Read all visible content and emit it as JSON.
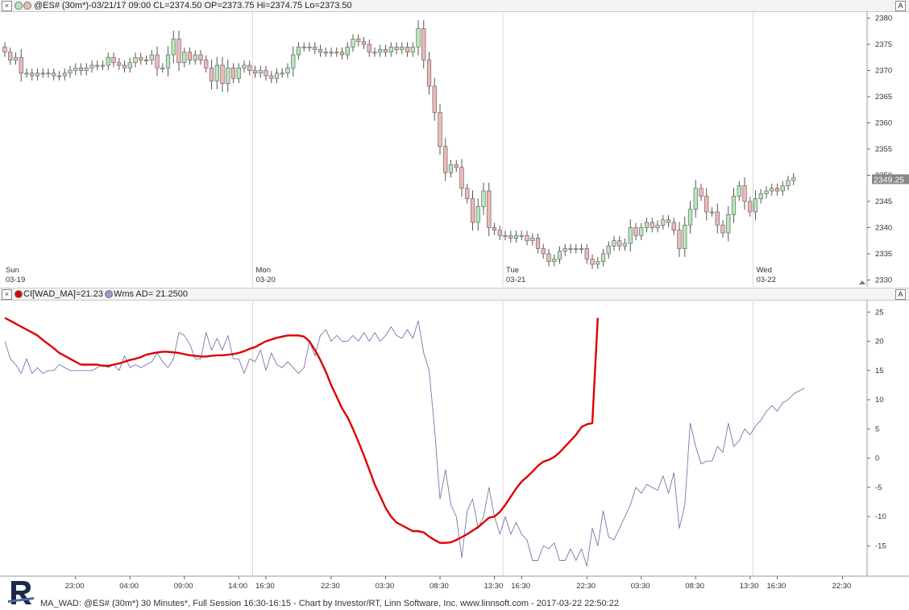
{
  "top_header": {
    "close": "×",
    "text": "@ES# (30m*)-03/21/17 09:00 CL=2374.50 OP=2373.75 Hi=2374.75 Lo=2373.50",
    "autoscale": "A"
  },
  "bottom_header": {
    "close": "×",
    "text1": "CI[WAD_MA]=21.23",
    "text2": "Wms AD=  21.2500",
    "autoscale": "A"
  },
  "footer": {
    "text": "MA_WAD: @ES# (30m*) 30 Minutes*, Full Session 16:30-16:15 - Chart by Investor/RT, Linn Software, Inc. www.linnsoft.com - 2017-03-22 22:50:22"
  },
  "colors": {
    "up_fill": "#b8e8b8",
    "down_fill": "#f0b8b8",
    "wick": "#555555",
    "ma": "#dd0000",
    "ad": "#7777aa",
    "grid": "#d8d8d8"
  },
  "chart_data": [
    {
      "type": "candlestick",
      "title": "@ES# (30m*)",
      "ylim": [
        2329,
        2381
      ],
      "y_ticks": [
        2330,
        2335,
        2340,
        2345,
        2350,
        2355,
        2360,
        2365,
        2370,
        2375,
        2380
      ],
      "last_price": "2349.25",
      "day_labels": [
        {
          "day": "Sun",
          "date": "03-19",
          "bar": 0
        },
        {
          "day": "Mon",
          "date": "03-20",
          "bar": 46
        },
        {
          "day": "Tue",
          "date": "03-21",
          "bar": 92
        },
        {
          "day": "Wed",
          "date": "03-22",
          "bar": 138
        }
      ],
      "closes": [
        2373.5,
        2372,
        2372.5,
        2369.5,
        2369.5,
        2369,
        2369.5,
        2369.5,
        2369.5,
        2369,
        2369,
        2369.5,
        2370,
        2370.5,
        2370,
        2370.5,
        2371,
        2371,
        2371,
        2372.5,
        2371.5,
        2371,
        2370.5,
        2371.5,
        2372.5,
        2372,
        2372,
        2373,
        2370.5,
        2370.5,
        2373,
        2376,
        2371.5,
        2373.5,
        2372,
        2373,
        2372,
        2370.5,
        2368,
        2371,
        2367.5,
        2370.5,
        2368.5,
        2370.5,
        2371,
        2370,
        2369.5,
        2370,
        2369,
        2368.5,
        2369.5,
        2369.5,
        2370.5,
        2373,
        2374.5,
        2374.5,
        2374.5,
        2374,
        2373.5,
        2373.5,
        2373.5,
        2373.5,
        2373,
        2374.5,
        2376,
        2375.5,
        2375,
        2373.5,
        2373.5,
        2374,
        2373.5,
        2374.5,
        2374,
        2374.5,
        2373.5,
        2374.5,
        2378,
        2372,
        2367,
        2362,
        2355.5,
        2350.5,
        2352,
        2351.5,
        2347.5,
        2345.5,
        2341,
        2344,
        2347,
        2340,
        2339.5,
        2338.5,
        2338.5,
        2338,
        2338.5,
        2338.5,
        2337.5,
        2338,
        2336,
        2335,
        2333.5,
        2334,
        2335.5,
        2336,
        2336,
        2336,
        2336,
        2334,
        2333,
        2333.5,
        2335,
        2336.5,
        2337.5,
        2336.5,
        2337,
        2340,
        2338.5,
        2340,
        2341,
        2340,
        2340.5,
        2341.5,
        2341,
        2339.5,
        2336,
        2340.5,
        2343.5,
        2347.5,
        2346,
        2343,
        2343,
        2340.5,
        2339,
        2342.5,
        2346,
        2348,
        2345,
        2343,
        2345.5,
        2346.5,
        2347,
        2347.5,
        2347,
        2348,
        2349,
        2349.5
      ],
      "x_ticks": [
        {
          "label": "23:00",
          "bar": 13
        },
        {
          "label": "04:00",
          "bar": 23
        },
        {
          "label": "09:00",
          "bar": 33
        },
        {
          "label": "14:00",
          "bar": 43
        },
        {
          "label": "16:30",
          "bar": 48
        },
        {
          "label": "22:30",
          "bar": 60
        },
        {
          "label": "03:30",
          "bar": 70
        },
        {
          "label": "08:30",
          "bar": 80
        },
        {
          "label": "13:30",
          "bar": 90
        },
        {
          "label": "16:30",
          "bar": 95
        },
        {
          "label": "22:30",
          "bar": 107
        },
        {
          "label": "03:30",
          "bar": 117
        },
        {
          "label": "08:30",
          "bar": 127
        },
        {
          "label": "13:30",
          "bar": 137
        },
        {
          "label": "16:30",
          "bar": 142
        },
        {
          "label": "22:30",
          "bar": 154
        }
      ]
    },
    {
      "type": "line",
      "ylim": [
        -19.5,
        26
      ],
      "y_ticks": [
        -15,
        -10,
        -5,
        0,
        5,
        10,
        15,
        20,
        25
      ],
      "series": [
        {
          "name": "CI[WAD_MA]",
          "color": "#dd0000",
          "values": [
            24,
            23.5,
            23,
            22.5,
            22,
            21.5,
            21,
            20.2,
            19.5,
            18.8,
            18,
            17.5,
            17,
            16.5,
            16,
            16,
            16,
            16,
            15.8,
            15.8,
            16,
            16.2,
            16.5,
            16.8,
            17,
            17.3,
            17.7,
            17.9,
            18.1,
            18.2,
            18.2,
            18.1,
            18,
            17.8,
            17.6,
            17.5,
            17.4,
            17.4,
            17.5,
            17.6,
            17.6,
            17.7,
            17.8,
            18,
            18.3,
            18.7,
            19,
            19.5,
            20,
            20.3,
            20.6,
            20.8,
            21,
            21,
            21,
            20.8,
            20,
            18.5,
            16.8,
            14.8,
            12.5,
            10.5,
            8.5,
            7,
            5,
            2.8,
            0.5,
            -2,
            -4.5,
            -6.5,
            -8.5,
            -10,
            -11,
            -11.5,
            -12,
            -12.5,
            -12.5,
            -12.7,
            -13.4,
            -14,
            -14.5,
            -14.5,
            -14.4,
            -14,
            -13.5,
            -13,
            -12.4,
            -11.8,
            -11,
            -10.2,
            -10,
            -9.2,
            -8,
            -6.6,
            -5.2,
            -4,
            -3.2,
            -2.3,
            -1.3,
            -0.6,
            -0.3,
            0.2,
            1,
            2,
            3,
            4,
            5.3,
            5.8,
            6,
            24
          ]
        },
        {
          "name": "Wms AD",
          "color": "#7777aa",
          "values": [
            20,
            17,
            16,
            14.5,
            17,
            14.5,
            15.5,
            14.5,
            15,
            15,
            16,
            15.5,
            15,
            15,
            15,
            15,
            15,
            15.5,
            16,
            15.5,
            16,
            15,
            17.5,
            15.5,
            16,
            15.5,
            16,
            16.5,
            18,
            16.5,
            15.5,
            17,
            21.5,
            21,
            19.5,
            17,
            17,
            21.5,
            18.5,
            20.5,
            18.5,
            21,
            17,
            17,
            14.5,
            17,
            16.5,
            18.5,
            15,
            18,
            16,
            15.5,
            16.5,
            15.5,
            14.5,
            15.5,
            20,
            17.5,
            21,
            22,
            20,
            21,
            20,
            20,
            21,
            20,
            21.5,
            20,
            21.5,
            20,
            21,
            22.5,
            21,
            20.5,
            22,
            20.5,
            23.5,
            18,
            15,
            5,
            -7,
            -2,
            -8,
            -10,
            -17,
            -9,
            -7,
            -12,
            -10,
            -5,
            -10,
            -13,
            -10,
            -13,
            -11,
            -13,
            -14,
            -17.5,
            -17.5,
            -15,
            -15.5,
            -14.5,
            -17.5,
            -17.5,
            -15.5,
            -17.5,
            -15.5,
            -18.5,
            -12,
            -15,
            -9,
            -13.5,
            -14,
            -12,
            -10,
            -8,
            -5,
            -6,
            -4.5,
            -5,
            -5.5,
            -3,
            -6,
            -2.5,
            -12,
            -8,
            6,
            2,
            -1,
            -0.5,
            -0.5,
            2,
            1,
            6,
            2,
            3,
            5,
            4,
            5.5,
            6.5,
            8,
            9,
            8,
            9.5,
            10,
            11,
            11.5,
            12
          ]
        }
      ]
    }
  ]
}
